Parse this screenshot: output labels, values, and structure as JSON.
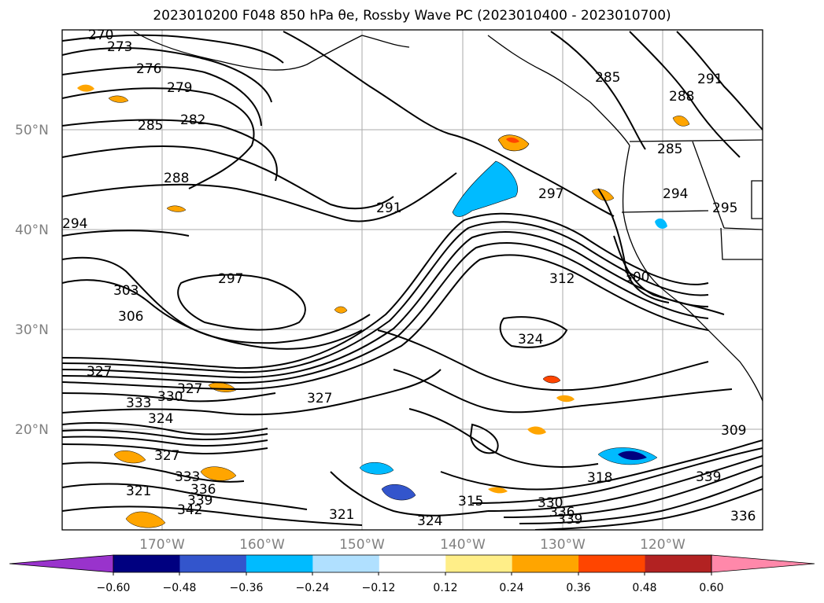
{
  "title": "2023010200 F048 850 hPa θe, Rossby Wave PC (2023010400 - 2023010700)",
  "lat_labels": [
    "50°N",
    "40°N",
    "30°N",
    "20°N"
  ],
  "lon_labels": [
    "170°W",
    "160°W",
    "150°W",
    "140°W",
    "130°W",
    "120°W"
  ],
  "contour_labels": [
    "270",
    "273",
    "276",
    "279",
    "282",
    "285",
    "288",
    "291",
    "294",
    "297",
    "303",
    "306",
    "312",
    "300",
    "324",
    "321",
    "327",
    "330",
    "333",
    "336",
    "339",
    "342",
    "315",
    "318",
    "309",
    "285",
    "288",
    "291",
    "294",
    "295"
  ],
  "colorbar": {
    "ticks": [
      "−0.60",
      "−0.48",
      "−0.36",
      "−0.24",
      "−0.12",
      "0.12",
      "0.24",
      "0.36",
      "0.48",
      "0.60"
    ],
    "colors": [
      "#9933cc",
      "#000080",
      "#3355cc",
      "#00bbff",
      "#b0e0ff",
      "#ffffff",
      "#ffee88",
      "#ffa500",
      "#ff4500",
      "#b22222",
      "#ff88aa"
    ]
  }
}
